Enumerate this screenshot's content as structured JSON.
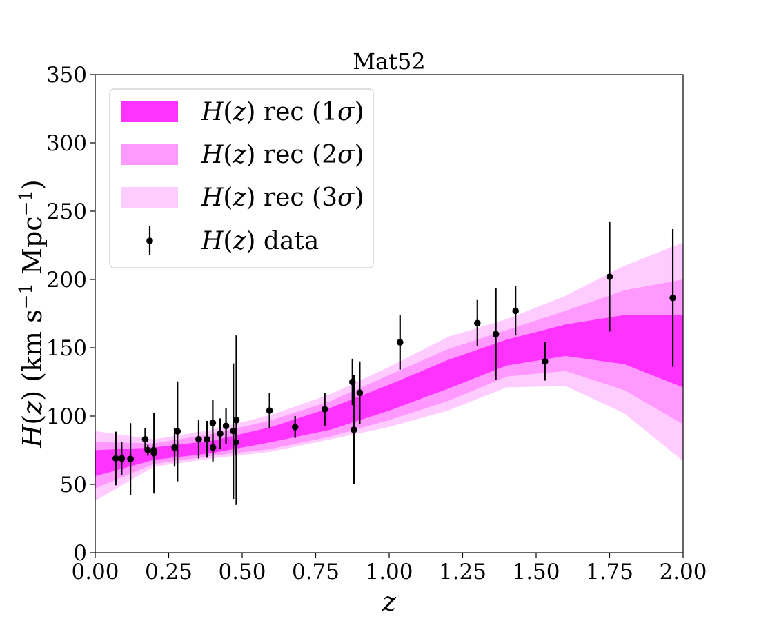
{
  "chart_data": {
    "type": "line",
    "title": "Mat52",
    "xlabel": "z",
    "ylabel": "H(z) (km s⁻¹ Mpc⁻¹)",
    "xlim": [
      0,
      2
    ],
    "ylim": [
      0,
      350
    ],
    "xticks": [
      "0.00",
      "0.25",
      "0.50",
      "0.75",
      "1.00",
      "1.25",
      "1.50",
      "1.75",
      "2.00"
    ],
    "yticks": [
      "0",
      "50",
      "100",
      "150",
      "200",
      "250",
      "300",
      "350"
    ],
    "grid": false,
    "legend_position": "top-left",
    "colors": {
      "band_1sigma": "#ff33ff",
      "band_2sigma": "#ff99ff",
      "band_3sigma": "#ffccff",
      "data": "#000000"
    },
    "bands": {
      "z": [
        0.0,
        0.2,
        0.4,
        0.6,
        0.8,
        1.0,
        1.2,
        1.4,
        1.6,
        1.8,
        2.0
      ],
      "sigma1_lower": [
        56,
        68,
        73,
        81,
        90,
        104,
        120,
        137,
        144,
        138,
        121
      ],
      "sigma1_upper": [
        75,
        77,
        82,
        92,
        106,
        123,
        141,
        156,
        167,
        174,
        174
      ],
      "sigma2_lower": [
        47,
        65,
        71,
        76,
        85,
        97,
        111,
        129,
        133,
        119,
        94
      ],
      "sigma2_upper": [
        81,
        80,
        87,
        97,
        111,
        130,
        149,
        163,
        177,
        192,
        200
      ],
      "sigma3_lower": [
        38,
        63,
        69,
        74,
        83,
        92,
        104,
        121,
        122,
        102,
        67
      ],
      "sigma3_upper": [
        89,
        83,
        90,
        101,
        116,
        136,
        158,
        171,
        188,
        210,
        227
      ]
    },
    "data_points": [
      {
        "z": 0.07,
        "H": 69,
        "err": 19.6
      },
      {
        "z": 0.09,
        "H": 69,
        "err": 12
      },
      {
        "z": 0.12,
        "H": 68.6,
        "err": 26.2
      },
      {
        "z": 0.17,
        "H": 83,
        "err": 8
      },
      {
        "z": 0.179,
        "H": 75,
        "err": 4
      },
      {
        "z": 0.199,
        "H": 75,
        "err": 5
      },
      {
        "z": 0.2,
        "H": 72.9,
        "err": 29.6
      },
      {
        "z": 0.27,
        "H": 77,
        "err": 14
      },
      {
        "z": 0.28,
        "H": 88.8,
        "err": 36.6
      },
      {
        "z": 0.352,
        "H": 83,
        "err": 14
      },
      {
        "z": 0.38,
        "H": 83,
        "err": 13.5
      },
      {
        "z": 0.4,
        "H": 95,
        "err": 17
      },
      {
        "z": 0.4004,
        "H": 77,
        "err": 10.2
      },
      {
        "z": 0.425,
        "H": 87.1,
        "err": 11.2
      },
      {
        "z": 0.445,
        "H": 92.8,
        "err": 12.9
      },
      {
        "z": 0.47,
        "H": 89,
        "err": 49.6
      },
      {
        "z": 0.4783,
        "H": 80.9,
        "err": 9
      },
      {
        "z": 0.48,
        "H": 97,
        "err": 62
      },
      {
        "z": 0.593,
        "H": 104,
        "err": 13
      },
      {
        "z": 0.68,
        "H": 92,
        "err": 8
      },
      {
        "z": 0.781,
        "H": 105,
        "err": 12
      },
      {
        "z": 0.875,
        "H": 125,
        "err": 17
      },
      {
        "z": 0.88,
        "H": 90,
        "err": 40
      },
      {
        "z": 0.9,
        "H": 117,
        "err": 23
      },
      {
        "z": 1.037,
        "H": 154,
        "err": 20
      },
      {
        "z": 1.3,
        "H": 168,
        "err": 17
      },
      {
        "z": 1.363,
        "H": 160,
        "err": 33.6
      },
      {
        "z": 1.43,
        "H": 177,
        "err": 18
      },
      {
        "z": 1.53,
        "H": 140,
        "err": 14
      },
      {
        "z": 1.75,
        "H": 202,
        "err": 40
      },
      {
        "z": 1.965,
        "H": 186.5,
        "err": 50.4
      }
    ]
  },
  "legend": [
    {
      "func": "H",
      "arg": "z",
      "suffix": " rec (1",
      "sym": "σ",
      "close": ")"
    },
    {
      "func": "H",
      "arg": "z",
      "suffix": " rec (2",
      "sym": "σ",
      "close": ")"
    },
    {
      "func": "H",
      "arg": "z",
      "suffix": " rec (3",
      "sym": "σ",
      "close": ")"
    },
    {
      "func": "H",
      "arg": "z",
      "suffix": " data",
      "sym": "",
      "close": ""
    }
  ],
  "ylabel_parts": {
    "func": "H",
    "arg": "z",
    "unit_pre": "(km s",
    "exp1": "−1",
    "unit_mid": " Mpc",
    "exp2": "−1",
    "unit_post": ")"
  }
}
